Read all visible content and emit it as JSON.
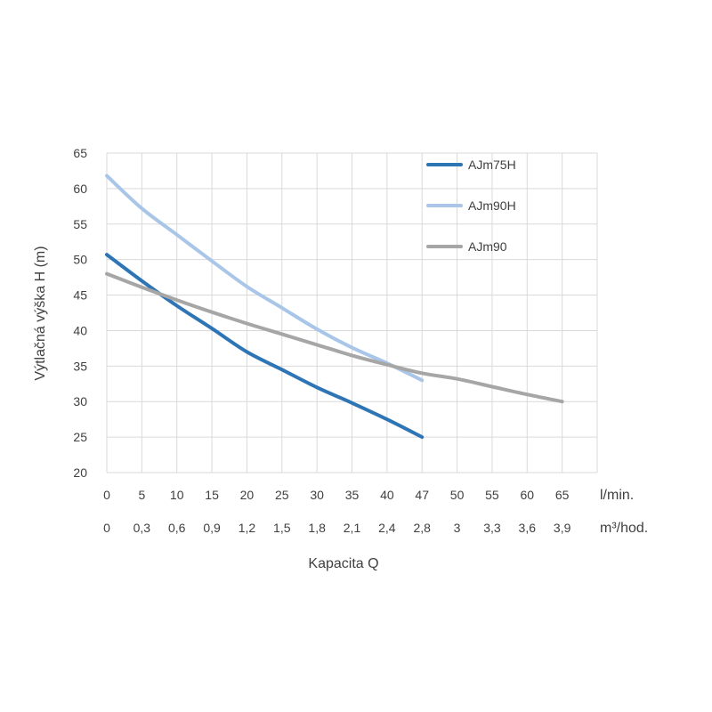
{
  "chart_data": {
    "type": "line",
    "title": "",
    "xlabel": "Kapacita Q",
    "ylabel": "Výtlačná výška H (m)",
    "ylim": [
      20,
      65
    ],
    "yticks": [
      "20",
      "25",
      "30",
      "35",
      "40",
      "45",
      "50",
      "55",
      "60",
      "65"
    ],
    "x_lmin": [
      0,
      5,
      10,
      15,
      20,
      25,
      30,
      35,
      40,
      47,
      50,
      55,
      60,
      65
    ],
    "categories": [
      "0",
      "5",
      "10",
      "15",
      "20",
      "25",
      "30",
      "35",
      "40",
      "47",
      "50",
      "55",
      "60",
      "65"
    ],
    "x_unit": "l/min.",
    "categories_m3": [
      "0",
      "0,3",
      "0,6",
      "0,9",
      "1,2",
      "1,5",
      "1,8",
      "2,1",
      "2,4",
      "2,8",
      "3",
      "3,3",
      "3,6",
      "3,9"
    ],
    "x_unit_m3": "m³/hod.",
    "grid": true,
    "legend_position": "top-right",
    "series": [
      {
        "name": "AJm75H",
        "color": "#2e75b6",
        "values": [
          50.7,
          47,
          43.5,
          40.3,
          37,
          34.5,
          32,
          29.8,
          27.5,
          25,
          null,
          null,
          null,
          null
        ]
      },
      {
        "name": "AJm90H",
        "color": "#a9c6e8",
        "values": [
          61.8,
          57.2,
          53.5,
          49.8,
          46.2,
          43.2,
          40.2,
          37.6,
          35.4,
          33,
          null,
          null,
          null,
          null
        ]
      },
      {
        "name": "AJm90",
        "color": "#a6a6a6",
        "values": [
          48,
          46.1,
          44.3,
          42.6,
          41,
          39.5,
          38,
          36.5,
          35.2,
          34,
          33.2,
          32.1,
          31,
          30
        ]
      }
    ]
  }
}
